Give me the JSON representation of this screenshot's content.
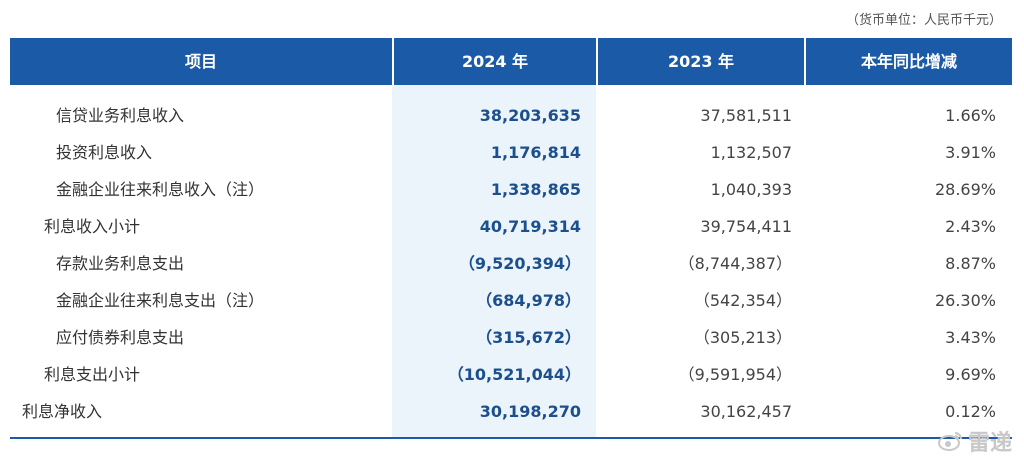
{
  "unit_note": "（货币单位：人民币千元）",
  "header": {
    "col_item": "项目",
    "col_2024": "2024 年",
    "col_2023": "2023 年",
    "col_change": "本年同比增减"
  },
  "rows": [
    {
      "label": "信贷业务利息收入",
      "v2024": "38,203,635",
      "v2023": "37,581,511",
      "change": "1.66%"
    },
    {
      "label": "投资利息收入",
      "v2024": "1,176,814",
      "v2023": "1,132,507",
      "change": "3.91%"
    },
    {
      "label": "金融企业往来利息收入（注）",
      "v2024": "1,338,865",
      "v2023": "1,040,393",
      "change": "28.69%"
    },
    {
      "label": "利息收入小计",
      "v2024": "40,719,314",
      "v2023": "39,754,411",
      "change": "2.43%"
    },
    {
      "label": "存款业务利息支出",
      "v2024": "（9,520,394）",
      "v2023": "（8,744,387）",
      "change": "8.87%"
    },
    {
      "label": "金融企业往来利息支出（注）",
      "v2024": "（684,978）",
      "v2023": "（542,354）",
      "change": "26.30%"
    },
    {
      "label": "应付债券利息支出",
      "v2024": "（315,672）",
      "v2023": "（305,213）",
      "change": "3.43%"
    },
    {
      "label": "利息支出小计",
      "v2024": "（10,521,044）",
      "v2023": "（9,591,954）",
      "change": "9.69%"
    },
    {
      "label": "利息净收入",
      "v2024": "30,198,270",
      "v2023": "30,162,457",
      "change": "0.12%"
    }
  ],
  "watermark": {
    "text": "雷递",
    "icon": "weibo-icon"
  }
}
